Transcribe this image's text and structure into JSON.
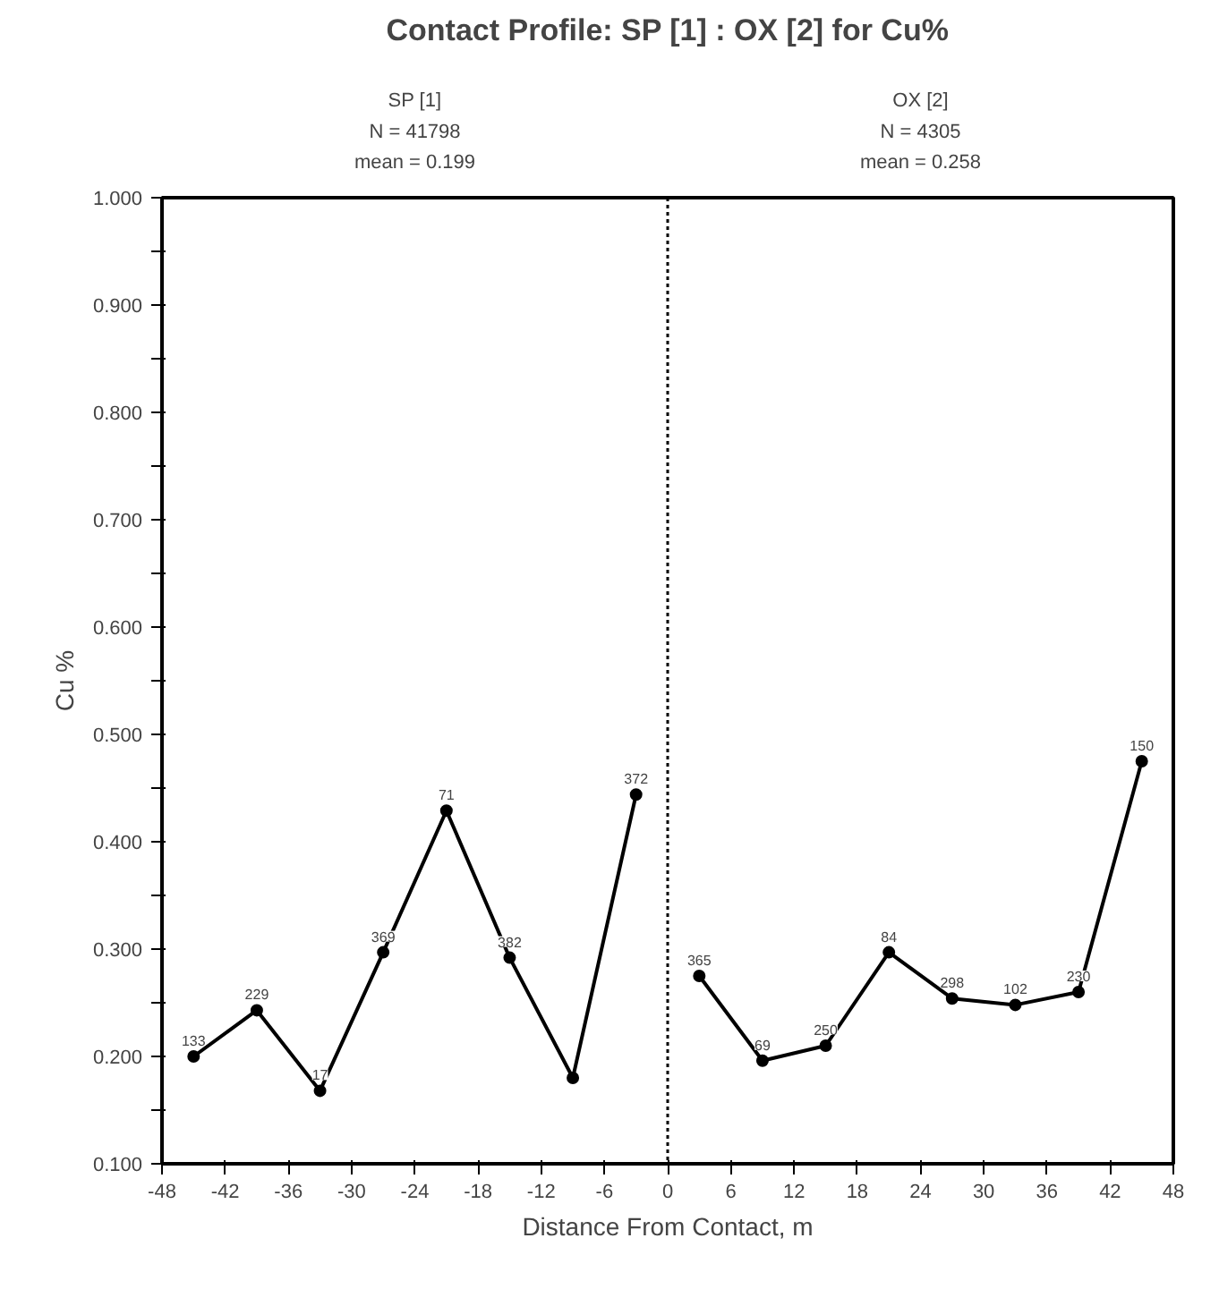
{
  "chart_data": {
    "type": "line",
    "title": "Contact Profile: SP [1] : OX [2] for Cu%",
    "xlabel": "Distance From Contact, m",
    "ylabel": "Cu %",
    "series": [
      {
        "color": "#000000",
        "x": [
          -45,
          -39,
          -33,
          -27,
          -21,
          -15,
          -9,
          -3
        ],
        "values": [
          0.2,
          0.243,
          0.168,
          0.297,
          0.429,
          0.292,
          0.18,
          0.444
        ]
      },
      {
        "color": "#000000",
        "x": [
          3,
          9,
          15,
          21,
          27,
          33,
          39,
          45
        ],
        "values": [
          0.275,
          0.196,
          0.21,
          0.297,
          0.254,
          0.248,
          0.26,
          0.475
        ]
      }
    ],
    "marker": "circle",
    "line_style": "solid",
    "grid": false,
    "xlim": [
      -48,
      48
    ],
    "xticks": [
      -48,
      -42,
      -36,
      -30,
      -24,
      -18,
      -12,
      -6,
      0,
      6,
      12,
      18,
      24,
      30,
      36,
      42,
      48
    ],
    "ylim": [
      0.1,
      1.0
    ],
    "yticks": [
      {
        "value": 0.1,
        "label": "0.100"
      },
      {
        "value": 0.15,
        "label": null
      },
      {
        "value": 0.2,
        "label": "0.200"
      },
      {
        "value": 0.25,
        "label": null
      },
      {
        "value": 0.3,
        "label": "0.300"
      },
      {
        "value": 0.35,
        "label": null
      },
      {
        "value": 0.4,
        "label": "0.400"
      },
      {
        "value": 0.45,
        "label": null
      },
      {
        "value": 0.5,
        "label": "0.500"
      },
      {
        "value": 0.55,
        "label": null
      },
      {
        "value": 0.6,
        "label": "0.600"
      },
      {
        "value": 0.65,
        "label": null
      },
      {
        "value": 0.7,
        "label": "0.700"
      },
      {
        "value": 0.75,
        "label": null
      },
      {
        "value": 0.8,
        "label": "0.800"
      },
      {
        "value": 0.85,
        "label": null
      },
      {
        "value": 0.9,
        "label": "0.900"
      },
      {
        "value": 0.95,
        "label": null
      },
      {
        "value": 1.0,
        "label": "1.000"
      }
    ],
    "ref_lines": [
      {
        "axis": "x",
        "value": 0,
        "color": "#000000",
        "line_style": "dotted"
      }
    ],
    "annotations": [
      "SP [1]",
      "N = 41798",
      "mean = 0.199",
      "OX [2]",
      "N = 4305",
      "mean = 0.258",
      {
        "text": "133",
        "x": -45,
        "y": 0.2
      },
      {
        "text": "229",
        "x": -39,
        "y": 0.243
      },
      {
        "text": "17",
        "x": -33,
        "y": 0.168
      },
      {
        "text": "369",
        "x": -27,
        "y": 0.297
      },
      {
        "text": "71",
        "x": -21,
        "y": 0.429
      },
      {
        "text": "382",
        "x": -15,
        "y": 0.292
      },
      {
        "text": "372",
        "x": -3,
        "y": 0.444
      },
      {
        "text": "365",
        "x": 3,
        "y": 0.275
      },
      {
        "text": "69",
        "x": 9,
        "y": 0.196
      },
      {
        "text": "250",
        "x": 15,
        "y": 0.21
      },
      {
        "text": "84",
        "x": 21,
        "y": 0.297
      },
      {
        "text": "298",
        "x": 27,
        "y": 0.254
      },
      {
        "text": "102",
        "x": 33,
        "y": 0.248
      },
      {
        "text": "230",
        "x": 39,
        "y": 0.26
      },
      {
        "text": "150",
        "x": 45,
        "y": 0.475
      }
    ]
  }
}
